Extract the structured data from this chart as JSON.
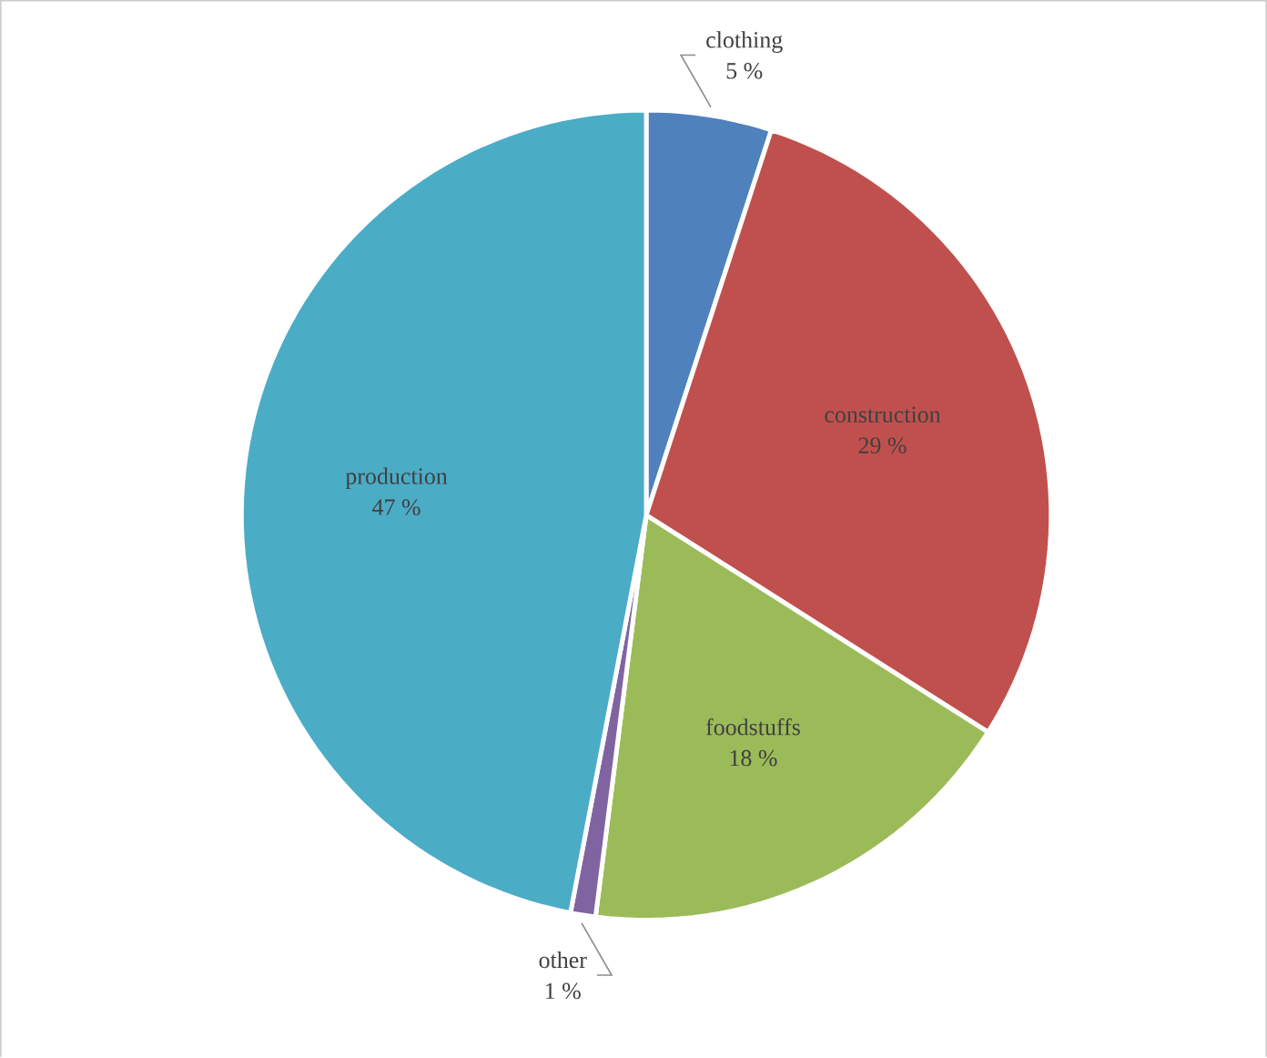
{
  "chart_data": {
    "type": "pie",
    "categories": [
      "clothing",
      "construction",
      "foodstuffs",
      "other",
      "production"
    ],
    "values": [
      5,
      29,
      18,
      1,
      47
    ],
    "value_labels": [
      "5 %",
      "29 %",
      "18 %",
      "1 %",
      "47 %"
    ],
    "colors": [
      "#4f81bd",
      "#c0504d",
      "#9bbb59",
      "#8064a2",
      "#4bacc6"
    ]
  }
}
